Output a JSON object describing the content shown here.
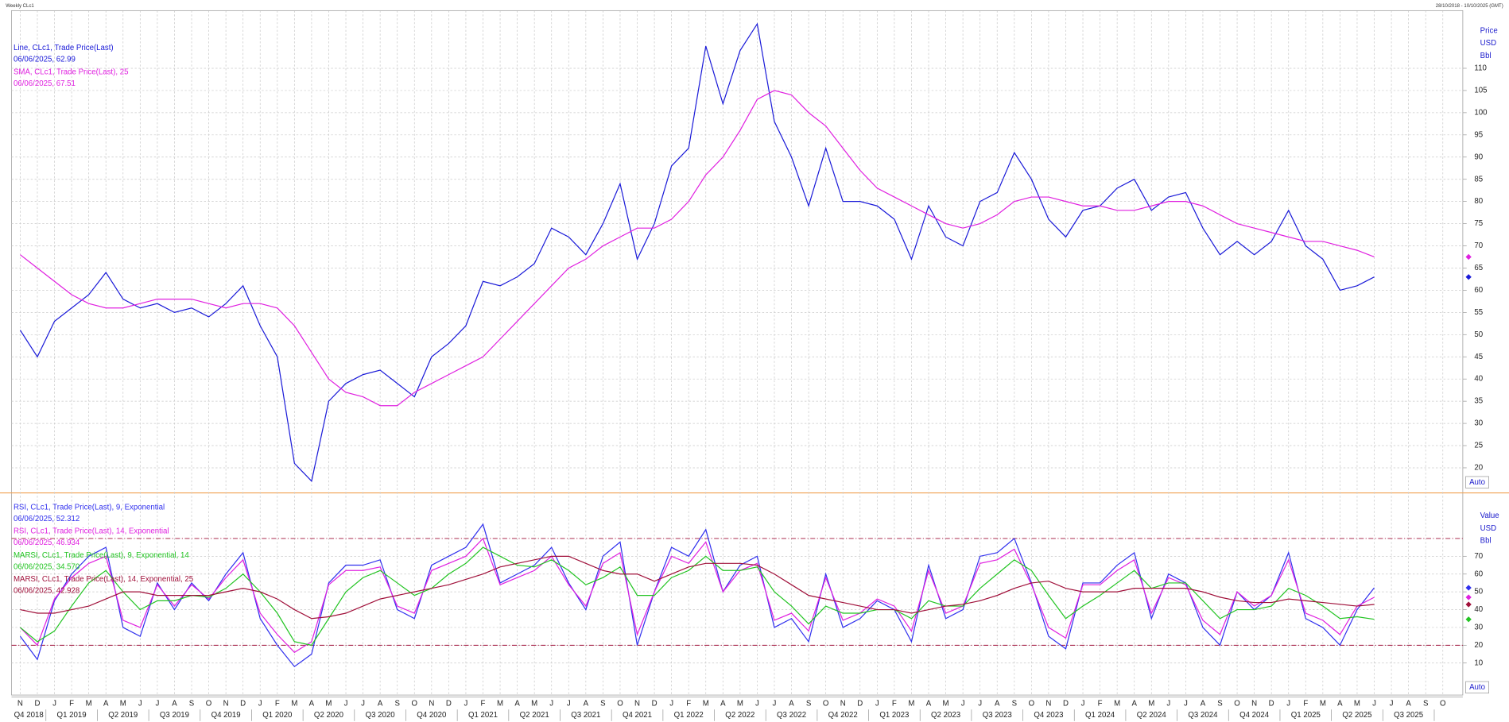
{
  "header": {
    "left": "Weekly CLc1",
    "right": "28/10/2018 - 10/10/2025 (GMT)"
  },
  "time_axis": {
    "months": [
      "N",
      "D",
      "J",
      "F",
      "M",
      "A",
      "M",
      "J",
      "J",
      "A",
      "S",
      "O",
      "N",
      "D",
      "J",
      "F",
      "M",
      "A",
      "M",
      "J",
      "J",
      "A",
      "S",
      "O",
      "N",
      "D",
      "J",
      "F",
      "M",
      "A",
      "M",
      "J",
      "J",
      "A",
      "S",
      "O",
      "N",
      "D",
      "J",
      "F",
      "M",
      "A",
      "M",
      "J",
      "J",
      "A",
      "S",
      "O",
      "N",
      "D",
      "J",
      "F",
      "M",
      "A",
      "M",
      "J",
      "J",
      "A",
      "S",
      "O",
      "N",
      "D",
      "J",
      "F",
      "M",
      "A",
      "M",
      "J",
      "J",
      "A",
      "S",
      "O",
      "N",
      "D",
      "J",
      "F",
      "M",
      "A",
      "M",
      "J",
      "J",
      "A",
      "S",
      "O"
    ],
    "quarters": [
      "Q4 2018",
      "Q1 2019",
      "Q2 2019",
      "Q3 2019",
      "Q4 2019",
      "Q1 2020",
      "Q2 2020",
      "Q3 2020",
      "Q4 2020",
      "Q1 2021",
      "Q2 2021",
      "Q3 2021",
      "Q4 2021",
      "Q1 2022",
      "Q2 2022",
      "Q3 2022",
      "Q4 2022",
      "Q1 2023",
      "Q2 2023",
      "Q3 2023",
      "Q4 2023",
      "Q1 2024",
      "Q2 2024",
      "Q3 2024",
      "Q4 2024",
      "Q1 2025",
      "Q2 2025",
      "Q3 2025"
    ]
  },
  "chart_data": [
    {
      "type": "line",
      "axis_title": [
        "Price",
        "USD",
        "Bbl"
      ],
      "auto_label": "Auto",
      "ylim": [
        15,
        123
      ],
      "yticks": [
        20,
        25,
        30,
        35,
        40,
        45,
        50,
        55,
        60,
        65,
        70,
        75,
        80,
        85,
        90,
        95,
        100,
        105,
        110
      ],
      "grid": true,
      "series": [
        {
          "name": "Line, CLc1, Trade Price(Last)",
          "last_label": "06/06/2025, 62.99",
          "color": "#1a1ad8",
          "values": [
            51,
            45,
            53,
            56,
            59,
            64,
            58,
            56,
            57,
            55,
            56,
            54,
            57,
            61,
            52,
            45,
            21,
            17,
            35,
            39,
            41,
            42,
            39,
            36,
            45,
            48,
            52,
            62,
            61,
            63,
            66,
            74,
            72,
            68,
            75,
            84,
            67,
            75,
            88,
            92,
            115,
            102,
            114,
            120,
            98,
            90,
            79,
            92,
            80,
            80,
            79,
            76,
            67,
            79,
            72,
            70,
            80,
            82,
            91,
            85,
            76,
            72,
            78,
            79,
            83,
            85,
            78,
            81,
            82,
            74,
            68,
            71,
            68,
            71,
            78,
            70,
            67,
            60,
            61,
            62.99,
            null,
            null,
            null,
            null
          ]
        },
        {
          "name": "SMA, CLc1, Trade Price(Last),  25",
          "last_label": "06/06/2025, 67.51",
          "color": "#e020e0",
          "values": [
            68,
            65,
            62,
            59,
            57,
            56,
            56,
            57,
            58,
            58,
            58,
            57,
            56,
            57,
            57,
            56,
            52,
            46,
            40,
            37,
            36,
            34,
            34,
            37,
            39,
            41,
            43,
            45,
            49,
            53,
            57,
            61,
            65,
            67,
            70,
            72,
            74,
            74,
            76,
            80,
            86,
            90,
            96,
            103,
            105,
            104,
            100,
            97,
            92,
            87,
            83,
            81,
            79,
            77,
            75,
            74,
            75,
            77,
            80,
            81,
            81,
            80,
            79,
            79,
            78,
            78,
            79,
            80,
            80,
            79,
            77,
            75,
            74,
            73,
            72,
            71,
            71,
            70,
            69,
            67.51,
            null,
            null,
            null,
            null
          ]
        }
      ]
    },
    {
      "type": "line",
      "axis_title": [
        "Value",
        "USD",
        "Bbl"
      ],
      "auto_label": "Auto",
      "ylim": [
        -8,
        104
      ],
      "yticks": [
        10,
        20,
        30,
        40,
        50,
        60,
        70
      ],
      "grid": true,
      "hlines": [
        80,
        20
      ],
      "hline_color": "#a0103a",
      "series": [
        {
          "name": "RSI, CLc1, Trade Price(Last),  9, Exponential",
          "last_label": "06/06/2025, 52.312",
          "color": "#3030ee",
          "values": [
            25,
            12,
            45,
            60,
            70,
            75,
            30,
            25,
            55,
            40,
            55,
            45,
            60,
            72,
            35,
            20,
            8,
            15,
            55,
            65,
            65,
            68,
            40,
            35,
            65,
            70,
            75,
            88,
            55,
            60,
            65,
            75,
            55,
            40,
            70,
            78,
            20,
            50,
            75,
            70,
            85,
            50,
            65,
            70,
            30,
            35,
            22,
            60,
            30,
            35,
            45,
            40,
            22,
            65,
            35,
            40,
            70,
            72,
            80,
            55,
            25,
            18,
            55,
            55,
            65,
            72,
            35,
            60,
            55,
            30,
            20,
            50,
            40,
            48,
            72,
            35,
            30,
            20,
            40,
            52.312,
            null,
            null,
            null,
            null
          ]
        },
        {
          "name": "RSI, CLc1, Trade Price(Last),  14, Exponential",
          "last_label": "06/06/2025, 46.934",
          "color": "#e020e0",
          "values": [
            30,
            20,
            46,
            58,
            66,
            70,
            34,
            30,
            54,
            42,
            54,
            46,
            58,
            68,
            38,
            26,
            16,
            22,
            54,
            62,
            62,
            64,
            42,
            38,
            62,
            66,
            70,
            80,
            54,
            58,
            62,
            70,
            54,
            42,
            66,
            72,
            26,
            50,
            70,
            66,
            78,
            50,
            62,
            66,
            34,
            38,
            28,
            58,
            34,
            38,
            46,
            42,
            28,
            62,
            38,
            42,
            66,
            68,
            74,
            54,
            30,
            24,
            54,
            54,
            62,
            68,
            38,
            58,
            54,
            34,
            26,
            50,
            42,
            48,
            68,
            38,
            34,
            26,
            42,
            46.934,
            null,
            null,
            null,
            null
          ]
        },
        {
          "name": "MARSI, CLc1, Trade Price(Last),  9, Exponential, 14",
          "last_label": "06/06/2025, 34.570",
          "color": "#22c422",
          "values": [
            30,
            22,
            28,
            42,
            55,
            62,
            50,
            40,
            45,
            45,
            48,
            47,
            52,
            60,
            50,
            38,
            22,
            20,
            35,
            50,
            58,
            62,
            55,
            48,
            52,
            60,
            66,
            75,
            70,
            65,
            64,
            68,
            62,
            54,
            58,
            64,
            48,
            48,
            58,
            62,
            70,
            62,
            62,
            64,
            50,
            42,
            32,
            42,
            38,
            38,
            40,
            40,
            35,
            45,
            42,
            42,
            52,
            60,
            68,
            62,
            48,
            35,
            42,
            48,
            55,
            62,
            52,
            55,
            55,
            45,
            35,
            40,
            40,
            42,
            52,
            48,
            42,
            35,
            36,
            34.57,
            null,
            null,
            null,
            null
          ]
        },
        {
          "name": "MARSI, CLc1, Trade Price(Last),  14, Exponential, 25",
          "last_label": "06/06/2025, 42.928",
          "color": "#a0103a",
          "values": [
            40,
            38,
            38,
            40,
            42,
            46,
            50,
            50,
            48,
            48,
            48,
            48,
            50,
            52,
            50,
            46,
            40,
            35,
            36,
            38,
            42,
            46,
            48,
            50,
            52,
            54,
            57,
            60,
            64,
            66,
            68,
            70,
            70,
            66,
            62,
            60,
            60,
            56,
            60,
            64,
            66,
            66,
            66,
            65,
            60,
            54,
            48,
            46,
            44,
            42,
            40,
            40,
            38,
            40,
            42,
            43,
            45,
            48,
            52,
            55,
            56,
            52,
            50,
            50,
            50,
            52,
            52,
            52,
            52,
            50,
            47,
            45,
            44,
            44,
            46,
            45,
            44,
            43,
            42,
            42.928,
            null,
            null,
            null,
            null
          ]
        }
      ]
    }
  ]
}
